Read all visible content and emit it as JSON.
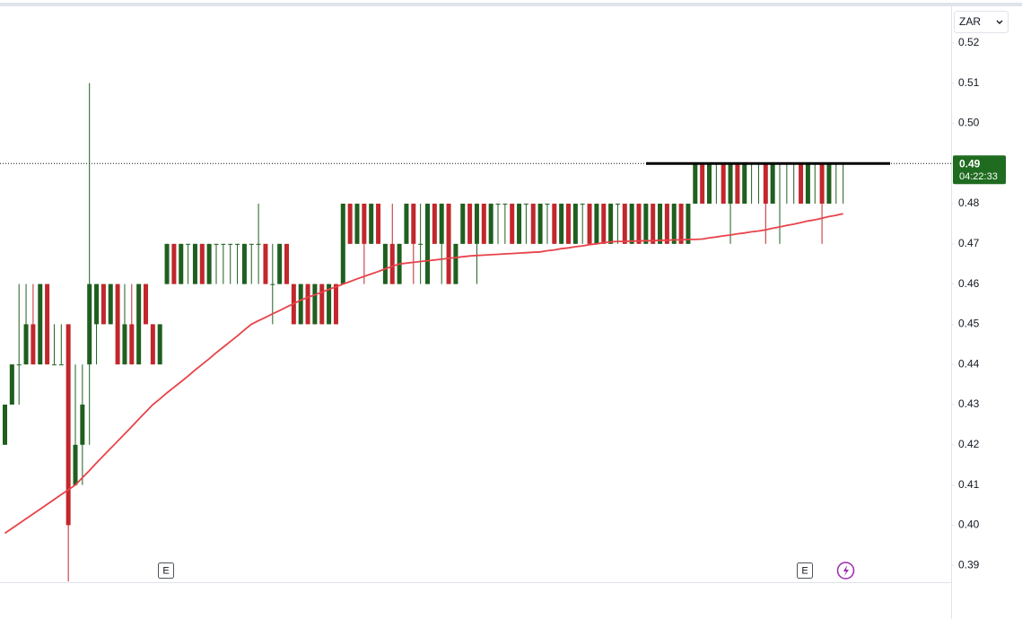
{
  "chart_data": {
    "type": "candlestick",
    "currency": "ZAR",
    "ylim": [
      0.3858,
      0.5289
    ],
    "yticks": [
      0.39,
      {
        "value": 0.4,
        "label": "0.40"
      },
      0.41,
      0.42,
      0.43,
      0.44,
      0.45,
      0.46,
      0.47,
      0.48,
      0.49,
      {
        "value": 0.5,
        "label": "0.50"
      },
      0.51,
      0.52
    ],
    "up_color": "#1f5f1f",
    "down_color": "#c1272d",
    "ma_color": "#e8434a",
    "last_price": 0.49,
    "countdown": "04:22:33",
    "horizontal_line": 0.49,
    "events": [
      "E",
      "E"
    ],
    "open": [
      0.42,
      0.43,
      0.44,
      0.44,
      0.45,
      0.44,
      0.46,
      0.44,
      0.44,
      0.45,
      0.41,
      0.42,
      0.44,
      0.45,
      0.46,
      0.45,
      0.46,
      0.44,
      0.45,
      0.44,
      0.46,
      0.45,
      0.44,
      0.46,
      0.47,
      0.46,
      0.47,
      0.46,
      0.47,
      0.46,
      0.47,
      0.47,
      0.47,
      0.47,
      0.46,
      0.47,
      0.47,
      0.47,
      0.46,
      0.46,
      0.47,
      0.46,
      0.45,
      0.46,
      0.45,
      0.46,
      0.45,
      0.46,
      0.46,
      0.48,
      0.47,
      0.48,
      0.47,
      0.48,
      0.46,
      0.47,
      0.46,
      0.47,
      0.48,
      0.47,
      0.46,
      0.48,
      0.47,
      0.48,
      0.46,
      0.47,
      0.48,
      0.47,
      0.48,
      0.47,
      0.48,
      0.48,
      0.48,
      0.47,
      0.48,
      0.48,
      0.47,
      0.48,
      0.48,
      0.47,
      0.48,
      0.47,
      0.48,
      0.48,
      0.47,
      0.48,
      0.47,
      0.48,
      0.48,
      0.47,
      0.48,
      0.47,
      0.48,
      0.47,
      0.48,
      0.47,
      0.48,
      0.47,
      0.48,
      0.49,
      0.48,
      0.49,
      0.49,
      0.48,
      0.49,
      0.48,
      0.49,
      0.49,
      0.49,
      0.48,
      0.49,
      0.49,
      0.49,
      0.49,
      0.48,
      0.49,
      0.49,
      0.48,
      0.49,
      0.49
    ],
    "high": [
      0.43,
      0.44,
      0.46,
      0.46,
      0.46,
      0.46,
      0.46,
      0.45,
      0.45,
      0.45,
      0.44,
      0.44,
      0.51,
      0.46,
      0.46,
      0.46,
      0.46,
      0.46,
      0.46,
      0.46,
      0.46,
      0.45,
      0.45,
      0.47,
      0.47,
      0.47,
      0.47,
      0.47,
      0.47,
      0.47,
      0.47,
      0.47,
      0.47,
      0.47,
      0.47,
      0.47,
      0.48,
      0.47,
      0.47,
      0.47,
      0.47,
      0.46,
      0.46,
      0.46,
      0.46,
      0.46,
      0.46,
      0.46,
      0.48,
      0.48,
      0.48,
      0.48,
      0.48,
      0.48,
      0.47,
      0.48,
      0.47,
      0.48,
      0.48,
      0.48,
      0.48,
      0.48,
      0.48,
      0.48,
      0.47,
      0.48,
      0.48,
      0.48,
      0.48,
      0.48,
      0.48,
      0.48,
      0.48,
      0.48,
      0.48,
      0.48,
      0.48,
      0.48,
      0.48,
      0.48,
      0.48,
      0.48,
      0.48,
      0.48,
      0.48,
      0.48,
      0.48,
      0.48,
      0.48,
      0.48,
      0.48,
      0.48,
      0.48,
      0.48,
      0.48,
      0.48,
      0.48,
      0.48,
      0.49,
      0.49,
      0.49,
      0.49,
      0.49,
      0.49,
      0.49,
      0.49,
      0.49,
      0.49,
      0.49,
      0.49,
      0.49,
      0.49,
      0.49,
      0.49,
      0.49,
      0.49,
      0.49,
      0.49,
      0.49,
      0.49
    ],
    "low": [
      0.42,
      0.43,
      0.43,
      0.44,
      0.44,
      0.44,
      0.44,
      0.44,
      0.44,
      0.386,
      0.41,
      0.41,
      0.42,
      0.44,
      0.45,
      0.45,
      0.44,
      0.44,
      0.44,
      0.44,
      0.45,
      0.44,
      0.44,
      0.46,
      0.46,
      0.46,
      0.46,
      0.46,
      0.46,
      0.46,
      0.46,
      0.46,
      0.46,
      0.46,
      0.46,
      0.46,
      0.46,
      0.46,
      0.45,
      0.46,
      0.46,
      0.45,
      0.45,
      0.45,
      0.45,
      0.45,
      0.45,
      0.45,
      0.46,
      0.47,
      0.47,
      0.46,
      0.47,
      0.47,
      0.46,
      0.46,
      0.46,
      0.47,
      0.46,
      0.46,
      0.46,
      0.47,
      0.46,
      0.46,
      0.46,
      0.47,
      0.47,
      0.46,
      0.47,
      0.47,
      0.47,
      0.47,
      0.47,
      0.47,
      0.47,
      0.47,
      0.47,
      0.47,
      0.47,
      0.47,
      0.47,
      0.47,
      0.47,
      0.47,
      0.47,
      0.47,
      0.47,
      0.47,
      0.47,
      0.47,
      0.47,
      0.47,
      0.47,
      0.47,
      0.47,
      0.47,
      0.47,
      0.47,
      0.48,
      0.48,
      0.48,
      0.48,
      0.48,
      0.47,
      0.48,
      0.48,
      0.48,
      0.48,
      0.47,
      0.48,
      0.47,
      0.48,
      0.48,
      0.48,
      0.48,
      0.48,
      0.47,
      0.48,
      0.48,
      0.48
    ],
    "close": [
      0.43,
      0.44,
      0.44,
      0.45,
      0.44,
      0.46,
      0.44,
      0.44,
      0.44,
      0.4,
      0.42,
      0.43,
      0.46,
      0.46,
      0.45,
      0.46,
      0.44,
      0.45,
      0.44,
      0.46,
      0.45,
      0.44,
      0.45,
      0.47,
      0.46,
      0.47,
      0.47,
      0.47,
      0.46,
      0.47,
      0.47,
      0.47,
      0.47,
      0.47,
      0.47,
      0.47,
      0.47,
      0.46,
      0.46,
      0.47,
      0.46,
      0.45,
      0.46,
      0.45,
      0.46,
      0.45,
      0.46,
      0.45,
      0.48,
      0.47,
      0.48,
      0.47,
      0.48,
      0.47,
      0.47,
      0.46,
      0.47,
      0.48,
      0.47,
      0.47,
      0.48,
      0.47,
      0.48,
      0.46,
      0.47,
      0.48,
      0.47,
      0.48,
      0.47,
      0.48,
      0.48,
      0.48,
      0.47,
      0.48,
      0.48,
      0.47,
      0.48,
      0.48,
      0.47,
      0.48,
      0.47,
      0.48,
      0.48,
      0.47,
      0.48,
      0.47,
      0.48,
      0.48,
      0.47,
      0.48,
      0.47,
      0.48,
      0.47,
      0.48,
      0.47,
      0.48,
      0.47,
      0.48,
      0.49,
      0.48,
      0.49,
      0.49,
      0.48,
      0.49,
      0.48,
      0.49,
      0.49,
      0.49,
      0.48,
      0.49,
      0.49,
      0.49,
      0.49,
      0.48,
      0.49,
      0.49,
      0.48,
      0.49,
      0.49,
      0.49
    ],
    "ma": [
      0.398,
      0.3992,
      0.4004,
      0.4016,
      0.4028,
      0.404,
      0.4052,
      0.4064,
      0.4076,
      0.4088,
      0.41,
      0.4118,
      0.4136,
      0.4155,
      0.4173,
      0.4191,
      0.4209,
      0.4227,
      0.4245,
      0.4264,
      0.4282,
      0.43,
      0.4314,
      0.4329,
      0.4343,
      0.4357,
      0.4371,
      0.4386,
      0.44,
      0.4414,
      0.4429,
      0.4443,
      0.4457,
      0.4471,
      0.4486,
      0.45,
      0.4509,
      0.4517,
      0.4526,
      0.4534,
      0.4543,
      0.4551,
      0.456,
      0.4567,
      0.4573,
      0.458,
      0.4587,
      0.4593,
      0.46,
      0.4606,
      0.4613,
      0.4619,
      0.4625,
      0.4631,
      0.4638,
      0.4644,
      0.465,
      0.4652,
      0.4654,
      0.4656,
      0.4658,
      0.466,
      0.4662,
      0.4664,
      0.4666,
      0.4668,
      0.467,
      0.4671,
      0.4672,
      0.4673,
      0.4674,
      0.4675,
      0.4676,
      0.4677,
      0.4678,
      0.4679,
      0.468,
      0.4683,
      0.4685,
      0.4688,
      0.469,
      0.4693,
      0.4695,
      0.4698,
      0.47,
      0.4703,
      0.4705,
      0.4706,
      0.4706,
      0.4707,
      0.4707,
      0.4708,
      0.4708,
      0.4709,
      0.4709,
      0.471,
      0.471,
      0.4711,
      0.4711,
      0.4712,
      0.4715,
      0.4717,
      0.472,
      0.4722,
      0.4725,
      0.4727,
      0.473,
      0.4732,
      0.4735,
      0.4739,
      0.4742,
      0.4746,
      0.4749,
      0.4753,
      0.4757,
      0.476,
      0.4764,
      0.4768,
      0.4771,
      0.4775
    ]
  }
}
